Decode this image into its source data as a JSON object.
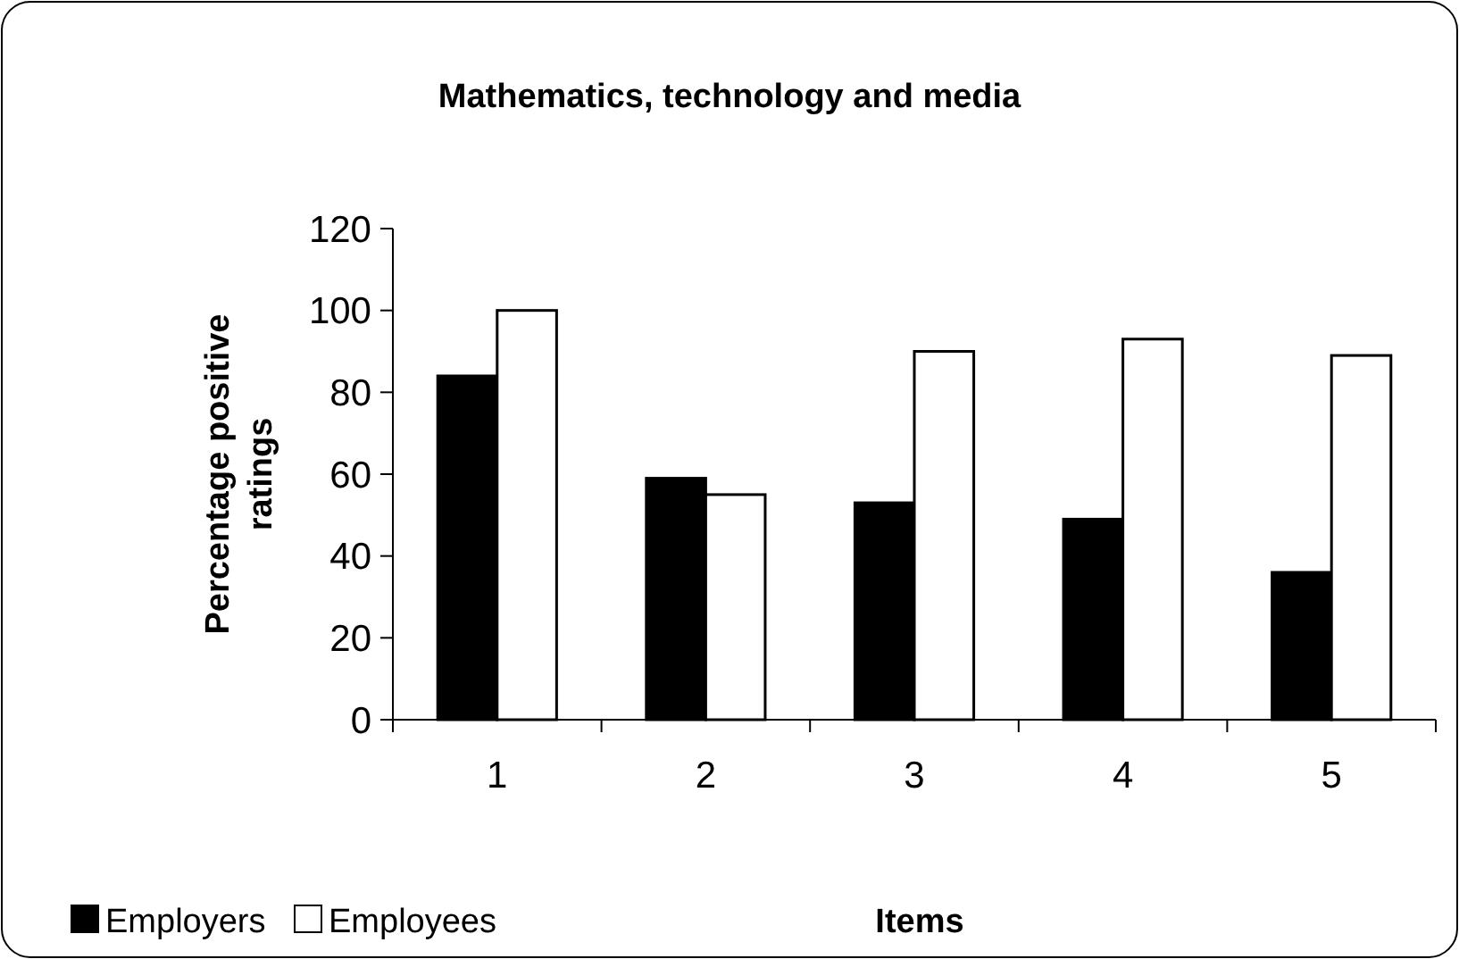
{
  "chart_data": {
    "type": "bar",
    "title": "Mathematics, technology and media",
    "xlabel": "Items",
    "ylabel": "Percentage positive ratings",
    "categories": [
      "1",
      "2",
      "3",
      "4",
      "5"
    ],
    "series": [
      {
        "name": "Employers",
        "color": "#000000",
        "values": [
          84,
          59,
          53,
          49,
          36
        ]
      },
      {
        "name": "Employees",
        "color": "#ffffff",
        "values": [
          100,
          55,
          90,
          93,
          89
        ]
      }
    ],
    "ylim": [
      0,
      120
    ],
    "yticks": [
      0,
      20,
      40,
      60,
      80,
      100,
      120
    ],
    "grid": false,
    "legend": "bottom left"
  }
}
